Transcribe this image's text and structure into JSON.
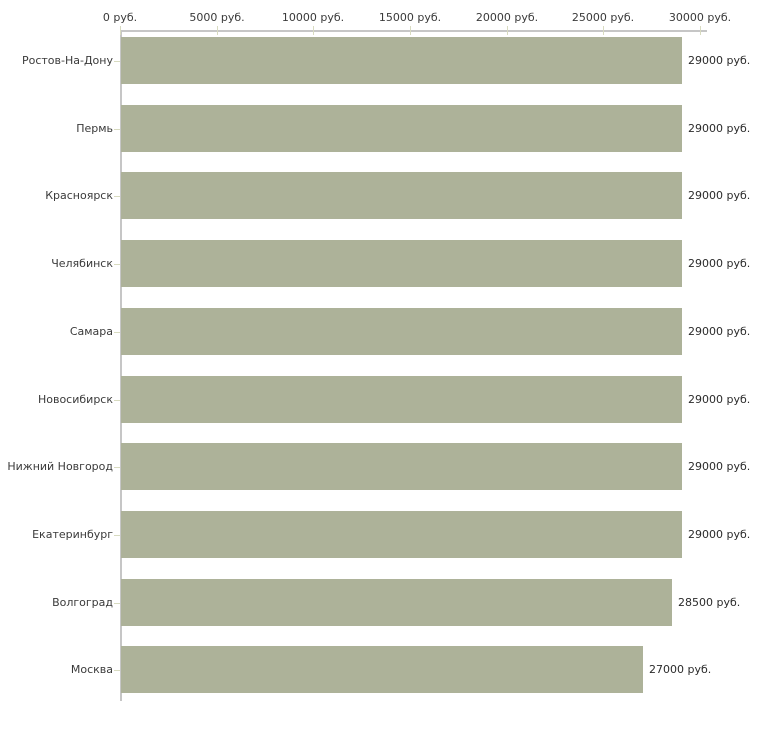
{
  "chart_data": {
    "type": "bar",
    "orientation": "horizontal",
    "title": "",
    "xlabel": "",
    "ylabel": "",
    "xlim": [
      0,
      30000
    ],
    "grid": false,
    "legend": "none",
    "x_tick_values": [
      0,
      5000,
      10000,
      15000,
      20000,
      25000,
      30000
    ],
    "x_tick_labels": [
      "0 руб.",
      "5000 руб.",
      "10000 руб.",
      "15000 руб.",
      "20000 руб.",
      "25000 руб.",
      "30000 руб."
    ],
    "categories": [
      "Ростов-На-Дону",
      "Пермь",
      "Красноярск",
      "Челябинск",
      "Самара",
      "Новосибирск",
      "Нижний Новгород",
      "Екатеринбург",
      "Волгоград",
      "Москва"
    ],
    "values": [
      29000,
      29000,
      29000,
      29000,
      29000,
      29000,
      29000,
      29000,
      28500,
      27000
    ],
    "bar_value_labels": [
      "29000 руб.",
      "29000 руб.",
      "29000 руб.",
      "29000 руб.",
      "29000 руб.",
      "29000 руб.",
      "29000 руб.",
      "29000 руб.",
      "28500 руб.",
      "27000 руб."
    ],
    "colors": {
      "bar": "#adb299",
      "axis": "#c6c6c6",
      "tick": "#d8dbc0",
      "text": "#3a3a3a",
      "background": "#ffffff"
    }
  }
}
